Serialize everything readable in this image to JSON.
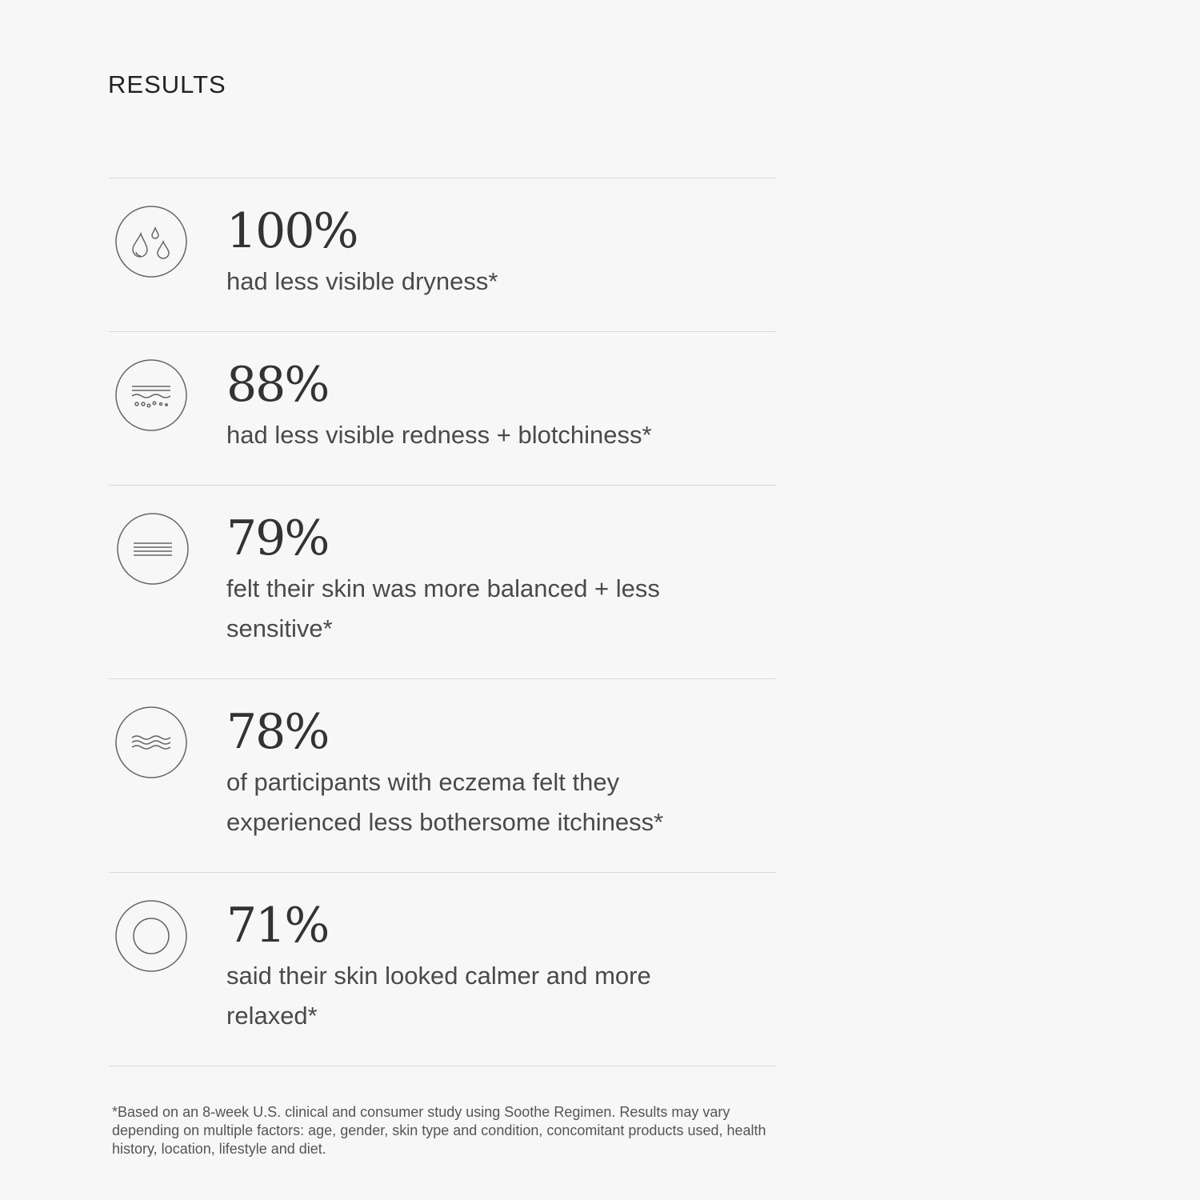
{
  "title": "RESULTS",
  "results": [
    {
      "value": "100%",
      "text": "had less visible dryness*",
      "icon": "water-drops-icon"
    },
    {
      "value": "88%",
      "text": "had less visible redness + blotchiness*",
      "icon": "skin-layers-icon"
    },
    {
      "value": "79%",
      "text": "felt their skin was more balanced + less sensitive*",
      "icon": "balanced-lines-icon"
    },
    {
      "value": "78%",
      "text": "of participants with eczema felt they experienced less bothersome itchiness*",
      "icon": "waves-icon"
    },
    {
      "value": "71%",
      "text": "said their skin looked calmer and more relaxed*",
      "icon": "calm-circle-icon"
    }
  ],
  "footnote": "*Based on an 8-week U.S. clinical and consumer study using Soothe Regimen. Results may vary depending on multiple factors: age, gender, skin type and condition, concomitant products used, health history, location, lifestyle and diet."
}
